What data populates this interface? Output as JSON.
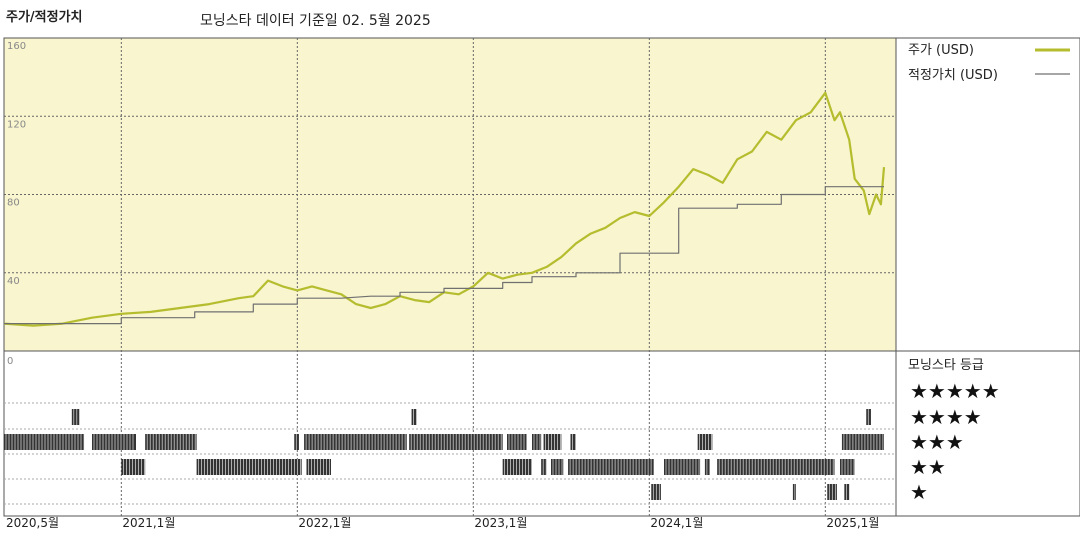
{
  "header": {
    "title": "주가/적정가치",
    "subtitle": "모닝스타 데이터 기준일 02. 5월 2025"
  },
  "legend": {
    "price_label": "주가 (USD)",
    "fair_label": "적정가치 (USD)",
    "rating_label": "모닝스타 등급"
  },
  "colors": {
    "price_line": "#b5bd2e",
    "fair_line": "#707070",
    "plot_bg": "#f8f5cf",
    "grid": "#666666",
    "rating_bar": "#333333"
  },
  "chart_data": {
    "type": "line",
    "y_ticks": [
      "160",
      "120",
      "80",
      "40"
    ],
    "y_range": [
      0,
      160
    ],
    "x_range": [
      "2020-05",
      "2025-05"
    ],
    "x_labels": [
      "2020,5월",
      "2021,1월",
      "2022,1월",
      "2023,1월",
      "2024,1월",
      "2025,1월"
    ],
    "lower_tick": "0",
    "series": [
      {
        "name": "주가 (USD)",
        "points": [
          [
            "2020-05",
            14
          ],
          [
            "2020-07",
            13
          ],
          [
            "2020-09",
            14
          ],
          [
            "2020-11",
            17
          ],
          [
            "2021-01",
            19
          ],
          [
            "2021-03",
            20
          ],
          [
            "2021-05",
            22
          ],
          [
            "2021-07",
            24
          ],
          [
            "2021-09",
            27
          ],
          [
            "2021-10",
            28
          ],
          [
            "2021-11",
            36
          ],
          [
            "2021-12",
            33
          ],
          [
            "2022-01",
            31
          ],
          [
            "2022-02",
            33
          ],
          [
            "2022-03",
            31
          ],
          [
            "2022-04",
            29
          ],
          [
            "2022-05",
            24
          ],
          [
            "2022-06",
            22
          ],
          [
            "2022-07",
            24
          ],
          [
            "2022-08",
            28
          ],
          [
            "2022-09",
            26
          ],
          [
            "2022-10",
            25
          ],
          [
            "2022-11",
            30
          ],
          [
            "2022-12",
            29
          ],
          [
            "2023-01",
            33
          ],
          [
            "2023-02",
            40
          ],
          [
            "2023-03",
            37
          ],
          [
            "2023-04",
            39
          ],
          [
            "2023-05",
            40
          ],
          [
            "2023-06",
            43
          ],
          [
            "2023-07",
            48
          ],
          [
            "2023-08",
            55
          ],
          [
            "2023-09",
            60
          ],
          [
            "2023-10",
            63
          ],
          [
            "2023-11",
            68
          ],
          [
            "2023-12",
            71
          ],
          [
            "2024-01",
            69
          ],
          [
            "2024-02",
            76
          ],
          [
            "2024-03",
            84
          ],
          [
            "2024-04",
            93
          ],
          [
            "2024-05",
            90
          ],
          [
            "2024-06",
            86
          ],
          [
            "2024-07",
            98
          ],
          [
            "2024-08",
            102
          ],
          [
            "2024-09",
            112
          ],
          [
            "2024-10",
            108
          ],
          [
            "2024-11",
            118
          ],
          [
            "2024-12",
            122
          ],
          [
            "2025-01",
            132
          ],
          [
            "2025-01-20",
            118
          ],
          [
            "2025-02",
            122
          ],
          [
            "2025-02-20",
            108
          ],
          [
            "2025-03",
            88
          ],
          [
            "2025-03-20",
            82
          ],
          [
            "2025-04",
            70
          ],
          [
            "2025-04-15",
            80
          ],
          [
            "2025-04-25",
            75
          ],
          [
            "2025-05",
            94
          ]
        ]
      },
      {
        "name": "적정가치 (USD)",
        "points": [
          [
            "2020-05",
            14
          ],
          [
            "2021-01",
            14
          ],
          [
            "2021-01",
            17
          ],
          [
            "2021-06",
            17
          ],
          [
            "2021-06",
            20
          ],
          [
            "2021-10",
            20
          ],
          [
            "2021-10",
            24
          ],
          [
            "2022-01",
            24
          ],
          [
            "2022-01",
            27
          ],
          [
            "2022-04",
            27
          ],
          [
            "2022-04",
            27
          ],
          [
            "2022-06",
            28
          ],
          [
            "2022-06",
            28
          ],
          [
            "2022-08",
            28
          ],
          [
            "2022-08",
            30
          ],
          [
            "2022-11",
            30
          ],
          [
            "2022-11",
            32
          ],
          [
            "2023-03",
            32
          ],
          [
            "2023-03",
            35
          ],
          [
            "2023-05",
            35
          ],
          [
            "2023-05",
            38
          ],
          [
            "2023-08",
            38
          ],
          [
            "2023-08",
            40
          ],
          [
            "2023-11",
            40
          ],
          [
            "2023-11",
            50
          ],
          [
            "2024-03",
            50
          ],
          [
            "2024-03",
            73
          ],
          [
            "2024-07",
            73
          ],
          [
            "2024-07",
            75
          ],
          [
            "2024-10",
            75
          ],
          [
            "2024-10",
            80
          ],
          [
            "2025-01",
            80
          ],
          [
            "2025-01",
            84
          ],
          [
            "2025-05",
            84
          ]
        ]
      }
    ],
    "rating_rows": [
      {
        "stars": "★★★★★",
        "level": 5,
        "segments": []
      },
      {
        "stars": "★★★★",
        "level": 4,
        "segments": [
          [
            "2020-09-20",
            "2020-10-05"
          ],
          [
            "2022-08-25",
            "2022-09-05"
          ],
          [
            "2025-03-25",
            "2025-04-05"
          ]
        ]
      },
      {
        "stars": "★★★",
        "level": 3,
        "segments": [
          [
            "2020-05",
            "2020-10-15"
          ],
          [
            "2020-11",
            "2021-02"
          ],
          [
            "2021-02-20",
            "2021-06-05"
          ],
          [
            "2021-12-25",
            "2022-01-05"
          ],
          [
            "2022-01-15",
            "2022-08-15"
          ],
          [
            "2022-08-20",
            "2023-03-01"
          ],
          [
            "2023-03-10",
            "2023-04-20"
          ],
          [
            "2023-05-01",
            "2023-05-20"
          ],
          [
            "2023-05-25",
            "2023-07-01"
          ],
          [
            "2023-07-20",
            "2023-08-01"
          ],
          [
            "2024-04-10",
            "2024-05-10"
          ],
          [
            "2025-02-05",
            "2025-05"
          ]
        ]
      },
      {
        "stars": "★★",
        "level": 2,
        "segments": [
          [
            "2021-01-01",
            "2021-02-20"
          ],
          [
            "2021-06-05",
            "2022-01-10"
          ],
          [
            "2022-01-20",
            "2022-03-10"
          ],
          [
            "2023-03-01",
            "2023-05-01"
          ],
          [
            "2023-05-20",
            "2023-06-01"
          ],
          [
            "2023-06-10",
            "2023-07-05"
          ],
          [
            "2023-07-15",
            "2024-01-10"
          ],
          [
            "2024-02-01",
            "2024-04-15"
          ],
          [
            "2024-04-25",
            "2024-05-05"
          ],
          [
            "2024-05-20",
            "2025-01-20"
          ],
          [
            "2025-02-01",
            "2025-03-01"
          ]
        ]
      },
      {
        "stars": "★",
        "level": 1,
        "segments": [
          [
            "2024-01-05",
            "2024-01-25"
          ],
          [
            "2024-10-25",
            "2024-11-01"
          ],
          [
            "2025-01-05",
            "2025-01-25"
          ],
          [
            "2025-02-10",
            "2025-02-20"
          ]
        ]
      }
    ]
  }
}
